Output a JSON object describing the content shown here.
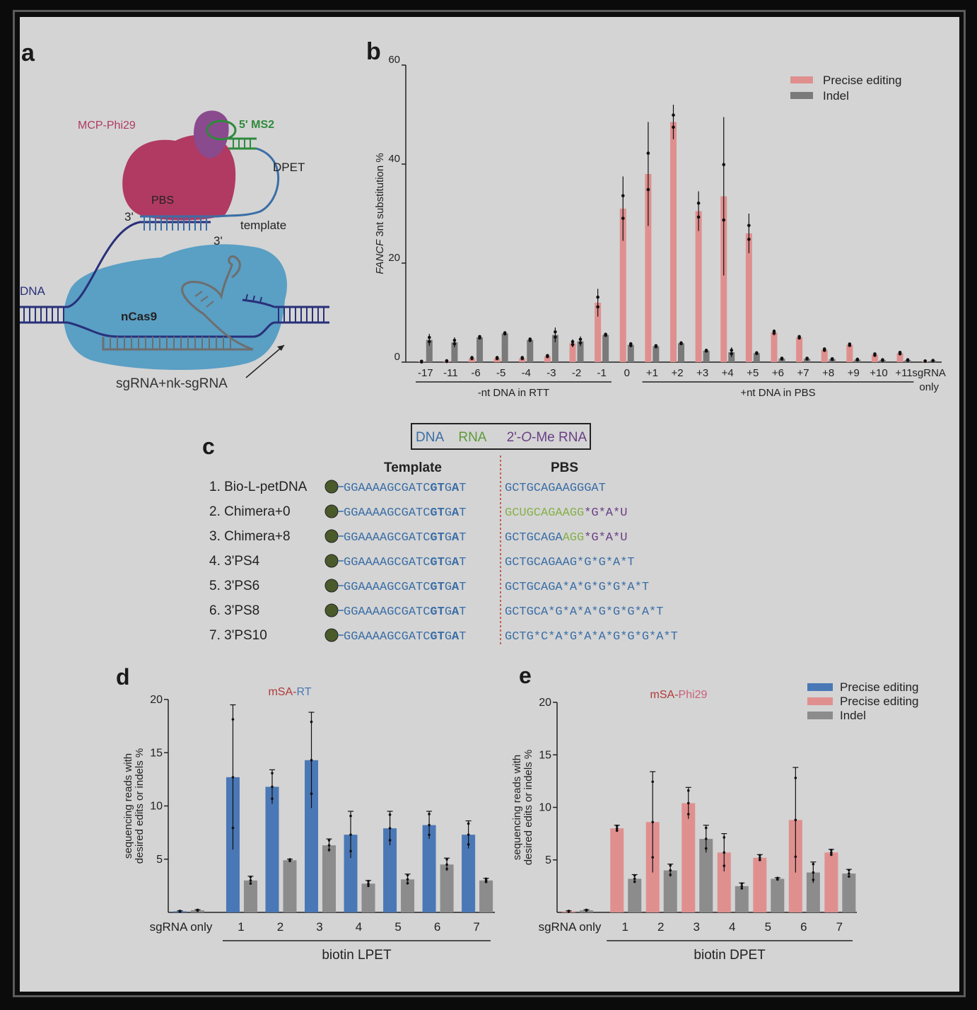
{
  "panel_labels": {
    "a": "a",
    "b": "b",
    "c": "c",
    "d": "d",
    "e": "e"
  },
  "panel_a": {
    "mcp": "MCP-Phi29",
    "ms2": "5' MS2",
    "dpet": "DPET",
    "pbs": "PBS",
    "three_prime_top": "3'",
    "three_prime_bottom": "3'",
    "template": "template",
    "dna": "DNA",
    "ncas9": "nCas9",
    "sgrna": "sgRNA+nk-sgRNA",
    "colors": {
      "mcp": "#b03a62",
      "ms2": "#2e8a3c",
      "dna": "#28307a",
      "cas9": "#5a9fc4",
      "dpet": "#3a6ea6"
    }
  },
  "panel_c": {
    "legend": {
      "dna": "DNA",
      "rna": "RNA",
      "ome_prefix": "2'-",
      "ome_italic": "O",
      "ome_suffix": "-Me RNA"
    },
    "header_template": "Template",
    "header_pbs": "PBS",
    "rows": [
      {
        "name": "1. Bio-L-petDNA",
        "t1": "GGAAAAGCGATC",
        "t2": "GT",
        "t3": "G",
        "t4": "A",
        "t5": "T",
        "pbs": [
          {
            "t": "GCTGCAGAAGGGAT",
            "k": "dna"
          }
        ]
      },
      {
        "name": "2. Chimera+0",
        "t1": "GGAAAAGCGATC",
        "t2": "GT",
        "t3": "G",
        "t4": "A",
        "t5": "T",
        "pbs": [
          {
            "t": "GCUGCAGAAGG",
            "k": "rna"
          },
          {
            "t": "*G*A*U",
            "k": "ome"
          }
        ]
      },
      {
        "name": "3. Chimera+8",
        "t1": "GGAAAAGCGATC",
        "t2": "GT",
        "t3": "G",
        "t4": "A",
        "t5": "T",
        "pbs": [
          {
            "t": "GCTGCAGA",
            "k": "dna"
          },
          {
            "t": "AGG",
            "k": "rna"
          },
          {
            "t": "*G*A*U",
            "k": "ome"
          }
        ]
      },
      {
        "name": "4. 3'PS4",
        "t1": "GGAAAAGCGATC",
        "t2": "GT",
        "t3": "G",
        "t4": "A",
        "t5": "T",
        "pbs": [
          {
            "t": "GCTGCAGAAG*G*G*A*T",
            "k": "dna"
          }
        ]
      },
      {
        "name": "5. 3'PS6",
        "t1": "GGAAAAGCGATC",
        "t2": "GT",
        "t3": "G",
        "t4": "A",
        "t5": "T",
        "pbs": [
          {
            "t": "GCTGCAGA*A*G*G*G*A*T",
            "k": "dna"
          }
        ]
      },
      {
        "name": "6. 3'PS8",
        "t1": "GGAAAAGCGATC",
        "t2": "GT",
        "t3": "G",
        "t4": "A",
        "t5": "T",
        "pbs": [
          {
            "t": "GCTGCA*G*A*A*G*G*G*A*T",
            "k": "dna"
          }
        ]
      },
      {
        "name": "7. 3'PS10",
        "t1": "GGAAAAGCGATC",
        "t2": "GT",
        "t3": "G",
        "t4": "A",
        "t5": "T",
        "pbs": [
          {
            "t": "GCTG*C*A*G*A*A*G*G*G*A*T",
            "k": "dna"
          }
        ]
      }
    ],
    "colors": {
      "dna": "#3a6ea6",
      "rna": "#86b04a",
      "ome": "#6a3f86"
    }
  },
  "chart_data": [
    {
      "id": "b",
      "type": "bar",
      "ylabel_italic": "FANCF",
      "ylabel_rest": " 3nt substitution %",
      "ylim": [
        0,
        60
      ],
      "yticks": [
        0,
        20,
        40,
        60
      ],
      "categories": [
        "-17",
        "-11",
        "-6",
        "-5",
        "-4",
        "-3",
        "-2",
        "-1",
        "0",
        "+1",
        "+2",
        "+3",
        "+4",
        "+5",
        "+6",
        "+7",
        "+8",
        "+9",
        "+10",
        "+11",
        "sgRNA\nonly"
      ],
      "series": [
        {
          "name": "Precise editing",
          "color": "#e08f8f",
          "values": [
            0.1,
            0.2,
            0.8,
            0.8,
            0.8,
            1.2,
            3.8,
            12,
            31,
            38,
            48.5,
            30.5,
            33.5,
            26,
            6,
            5,
            2.5,
            3.5,
            1.5,
            1.8,
            0.2
          ],
          "err": [
            0.2,
            0.2,
            0.3,
            0.3,
            0.3,
            0.3,
            0.8,
            2.8,
            6.5,
            10.5,
            3.5,
            4,
            16,
            4,
            0.6,
            0.4,
            0.4,
            0.4,
            0.4,
            0.4,
            0.1
          ]
        },
        {
          "name": "Indel",
          "color": "#7a7a7a",
          "values": [
            4.5,
            4,
            5,
            5.8,
            4.5,
            5.5,
            4.2,
            5.5,
            3.5,
            3.2,
            3.8,
            2.3,
            2,
            1.8,
            0.7,
            0.7,
            0.6,
            0.5,
            0.4,
            0.4,
            0.3
          ],
          "err": [
            1.2,
            1,
            0.4,
            0.3,
            0.4,
            1.5,
            1,
            0.3,
            0.5,
            0.3,
            0.2,
            0.2,
            1,
            0.2,
            0.2,
            0.2,
            0.2,
            0.2,
            0.2,
            0.2,
            0.1
          ]
        }
      ],
      "groups": [
        {
          "label": "-nt DNA in RTT",
          "from": 0,
          "to": 7
        },
        {
          "label": "+nt DNA in PBS",
          "from": 9,
          "to": 19
        }
      ],
      "legend_position": "top-right"
    },
    {
      "id": "d",
      "type": "bar",
      "title_prefix": "mSA-",
      "title_suffix": "RT",
      "ylabel_line1": "sequencing reads with",
      "ylabel_line2": "desired edits or indels %",
      "ylim": [
        0,
        20
      ],
      "yticks": [
        5,
        10,
        15,
        20
      ],
      "categories": [
        "sgRNA only",
        "1",
        "2",
        "3",
        "4",
        "5",
        "6",
        "7"
      ],
      "series": [
        {
          "name": "Precise editing",
          "color": "#4a78b6",
          "values": [
            0.1,
            12.7,
            11.8,
            14.3,
            7.3,
            7.9,
            8.2,
            7.3
          ],
          "err": [
            0.05,
            6.8,
            1.6,
            4.5,
            2.2,
            1.6,
            1.3,
            1.3
          ]
        },
        {
          "name": "Indel",
          "color": "#8c8c8c",
          "values": [
            0.2,
            3,
            4.9,
            6.3,
            2.7,
            3.1,
            4.5,
            3
          ],
          "err": [
            0.05,
            0.4,
            0.1,
            0.6,
            0.3,
            0.5,
            0.6,
            0.2
          ]
        }
      ],
      "xgroup": "biotin LPET"
    },
    {
      "id": "e",
      "type": "bar",
      "title_prefix": "mSA-",
      "title_suffix": "Phi29",
      "ylabel_line1": "sequencing reads with",
      "ylabel_line2": "desired edits or indels %",
      "ylim": [
        0,
        20
      ],
      "yticks": [
        5,
        10,
        15,
        20
      ],
      "categories": [
        "sgRNA only",
        "1",
        "2",
        "3",
        "4",
        "5",
        "6",
        "7"
      ],
      "series": [
        {
          "name": "Precise editing",
          "color": "#e08f8f",
          "values": [
            0.1,
            8,
            8.6,
            10.4,
            5.7,
            5.2,
            8.8,
            5.7
          ],
          "err": [
            0.05,
            0.3,
            4.8,
            1.5,
            1.8,
            0.3,
            5,
            0.3
          ]
        },
        {
          "name": "Indel",
          "color": "#8c8c8c",
          "values": [
            0.2,
            3.2,
            4,
            7,
            2.5,
            3.2,
            3.8,
            3.7
          ],
          "err": [
            0.05,
            0.4,
            0.6,
            1.3,
            0.3,
            0.1,
            1,
            0.4
          ]
        }
      ],
      "xgroup": "biotin DPET",
      "legend": [
        {
          "name": "Precise editing",
          "color": "#4a78b6"
        },
        {
          "name": "Precise editing",
          "color": "#e08f8f"
        },
        {
          "name": "Indel",
          "color": "#8c8c8c"
        }
      ],
      "legend_position": "top-right"
    }
  ]
}
